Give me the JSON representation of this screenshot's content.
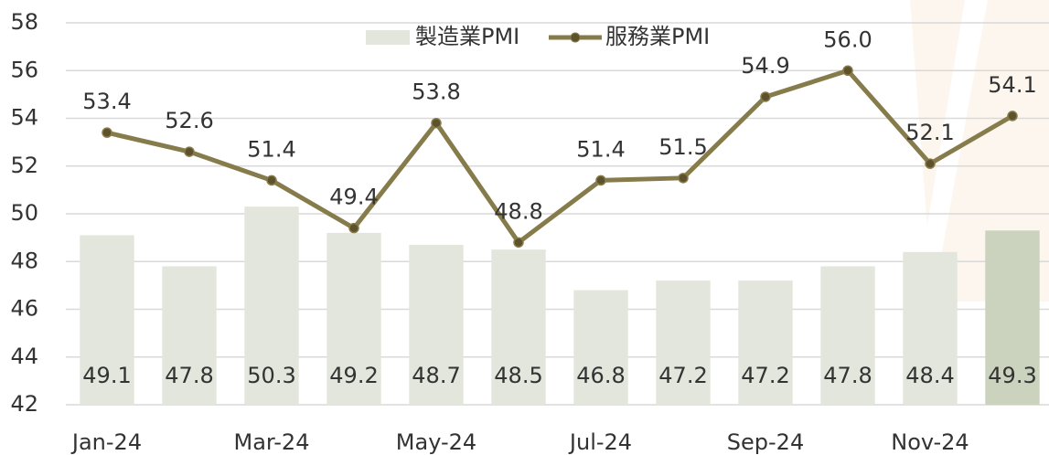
{
  "chart_data": {
    "type": "bar_line",
    "categories": [
      "Jan-24",
      null,
      "Mar-24",
      null,
      "May-24",
      null,
      "Jul-24",
      null,
      "Sep-24",
      null,
      "Nov-24",
      null
    ],
    "series": [
      {
        "name": "製造業PMI",
        "type": "bar",
        "colors": [
          "#e3e6dc",
          "#e3e6dc",
          "#e3e6dc",
          "#e3e6dc",
          "#e3e6dc",
          "#e3e6dc",
          "#e3e6dc",
          "#e3e6dc",
          "#e3e6dc",
          "#e3e6dc",
          "#e3e6dc",
          "#cbd3bf"
        ],
        "values": [
          49.1,
          47.8,
          50.3,
          49.2,
          48.7,
          48.5,
          46.8,
          47.2,
          47.2,
          47.8,
          48.4,
          49.3
        ]
      },
      {
        "name": "服務業PMI",
        "type": "line",
        "color": "#867b4a",
        "marker_color": "#5e522d",
        "values": [
          53.4,
          52.6,
          51.4,
          49.4,
          53.8,
          48.8,
          51.4,
          51.5,
          54.9,
          56.0,
          52.1,
          54.1
        ],
        "value_labels": [
          "53.4",
          "52.6",
          "51.4",
          "49.4",
          "53.8",
          "48.8",
          "51.4",
          "51.5",
          "54.9",
          "56.0",
          "52.1",
          "54.1"
        ]
      }
    ],
    "ylim": [
      42,
      58
    ],
    "yticks": [
      42,
      44,
      46,
      48,
      50,
      52,
      54,
      56,
      58
    ],
    "grid": true,
    "legend": "top"
  }
}
